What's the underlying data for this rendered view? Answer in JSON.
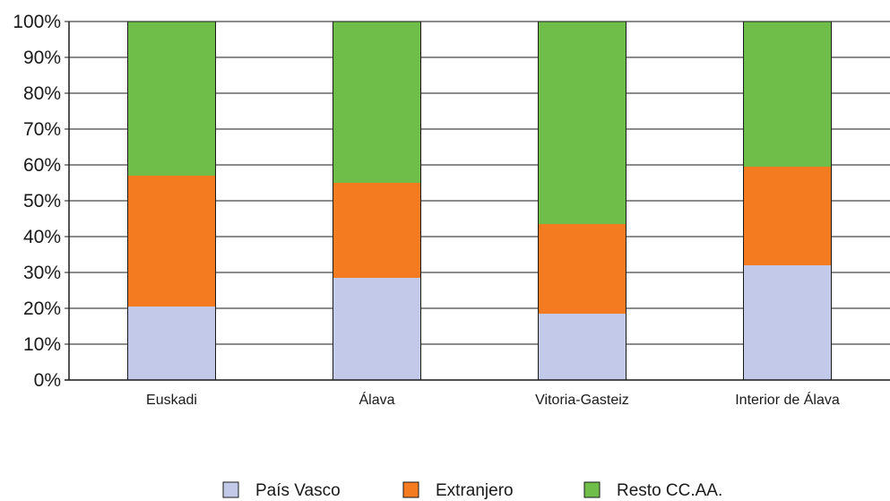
{
  "chart_data": {
    "type": "bar",
    "stacked": true,
    "categories": [
      "Euskadi",
      "Álava",
      "Vitoria-Gasteiz",
      "Interior de Álava"
    ],
    "series": [
      {
        "name": "País Vasco",
        "color": "#c3c9e8",
        "values": [
          20.5,
          28.5,
          18.5,
          32
        ]
      },
      {
        "name": "Extranjero",
        "color": "#f47b20",
        "values": [
          36.5,
          26.5,
          25,
          27.5
        ]
      },
      {
        "name": "Resto CC.AA.",
        "color": "#6fbe4a",
        "values": [
          43,
          45,
          56.5,
          40.5
        ]
      }
    ],
    "y_ticks": [
      "0%",
      "10%",
      "20%",
      "30%",
      "40%",
      "50%",
      "60%",
      "70%",
      "80%",
      "90%",
      "100%"
    ],
    "ylim": [
      0,
      100
    ],
    "grid": true,
    "legend_position": "bottom-center",
    "title": "",
    "xlabel": "",
    "ylabel": ""
  }
}
